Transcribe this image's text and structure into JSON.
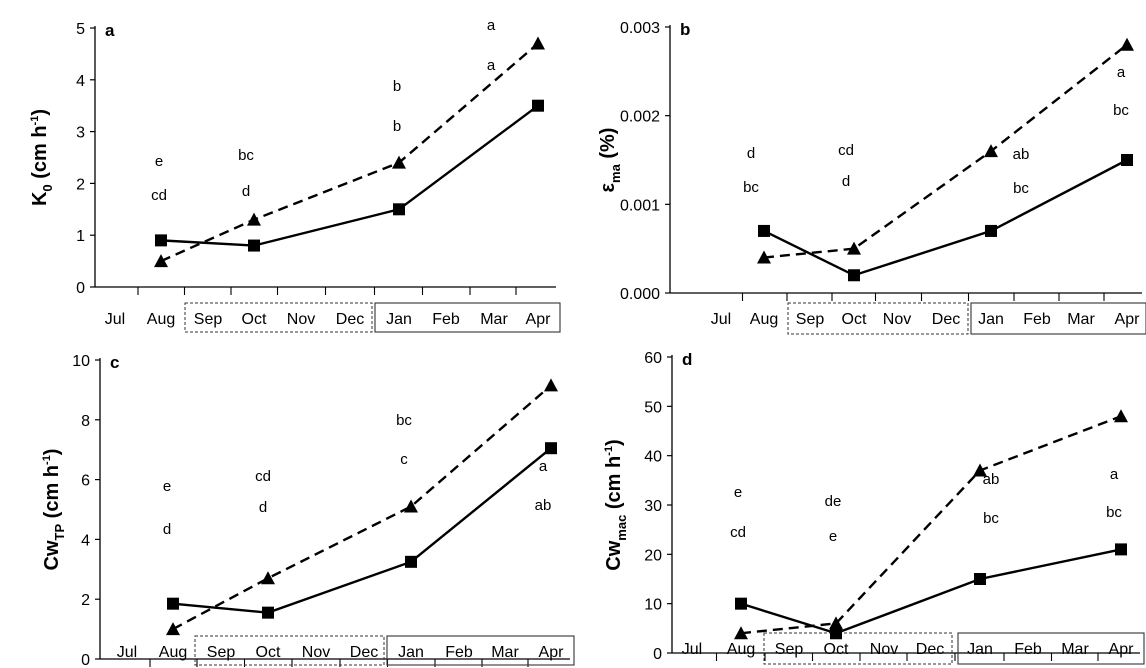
{
  "chart_data": [
    {
      "panel": "a",
      "type": "line",
      "categories": [
        "Jul",
        "Aug",
        "Sep",
        "Oct",
        "Nov",
        "Dec",
        "Jan",
        "Feb",
        "Mar",
        "Apr"
      ],
      "ylim": [
        0,
        5
      ],
      "yticks": [
        "0",
        "1",
        "2",
        "3",
        "4",
        "5"
      ],
      "ylabel": {
        "main": "K",
        "sub": "0",
        "unit_prefix": " (cm h",
        "unit_sup": "-1",
        "unit_suffix": ")"
      },
      "series": [
        {
          "style": "solid",
          "marker": "square",
          "points": [
            [
              "Aug",
              0.9
            ],
            [
              "Oct",
              0.8
            ],
            [
              "Jan",
              1.5
            ],
            [
              "Apr",
              3.5
            ]
          ]
        },
        {
          "style": "dashed",
          "marker": "triangle",
          "points": [
            [
              "Aug",
              0.5
            ],
            [
              "Oct",
              1.3
            ],
            [
              "Jan",
              2.4
            ],
            [
              "Apr",
              4.7
            ]
          ]
        }
      ],
      "letters": [
        {
          "month": "Aug",
          "upper": "e",
          "lower": "cd"
        },
        {
          "month": "Oct",
          "upper": "bc",
          "lower": "d"
        },
        {
          "month": "Jan",
          "upper": "b",
          "lower": "b"
        },
        {
          "month": "Apr",
          "upper": "a",
          "lower": "a"
        }
      ]
    },
    {
      "panel": "b",
      "type": "line",
      "categories": [
        "Jul",
        "Aug",
        "Sep",
        "Oct",
        "Nov",
        "Dec",
        "Jan",
        "Feb",
        "Mar",
        "Apr"
      ],
      "ylim": [
        0,
        0.003
      ],
      "yticks": [
        "0.000",
        "0.001",
        "0.002",
        "0.003"
      ],
      "ylabel": {
        "main": "ε",
        "sub": "ma",
        "unit_prefix": " (%)",
        "unit_sup": "",
        "unit_suffix": ""
      },
      "series": [
        {
          "style": "solid",
          "marker": "square",
          "points": [
            [
              "Aug",
              0.0007
            ],
            [
              "Oct",
              0.0002
            ],
            [
              "Jan",
              0.0007
            ],
            [
              "Apr",
              0.0015
            ]
          ]
        },
        {
          "style": "dashed",
          "marker": "triangle",
          "points": [
            [
              "Aug",
              0.0004
            ],
            [
              "Oct",
              0.0005
            ],
            [
              "Jan",
              0.0016
            ],
            [
              "Apr",
              0.0028
            ]
          ]
        }
      ],
      "letters": [
        {
          "month": "Aug",
          "upper": "d",
          "lower": "bc"
        },
        {
          "month": "Oct",
          "upper": "cd",
          "lower": "d"
        },
        {
          "month": "Jan",
          "upper": "ab",
          "lower": "bc"
        },
        {
          "month": "Apr",
          "upper": "a",
          "lower": "bc"
        }
      ]
    },
    {
      "panel": "c",
      "type": "line",
      "categories": [
        "Jul",
        "Aug",
        "Sep",
        "Oct",
        "Nov",
        "Dec",
        "Jan",
        "Feb",
        "Mar",
        "Apr"
      ],
      "ylim": [
        0,
        10
      ],
      "yticks": [
        "0",
        "2",
        "4",
        "6",
        "8",
        "10"
      ],
      "ylabel": {
        "main": "Cw",
        "sub": "TP",
        "unit_prefix": " (cm h",
        "unit_sup": "-1",
        "unit_suffix": ")"
      },
      "series": [
        {
          "style": "solid",
          "marker": "square",
          "points": [
            [
              "Aug",
              1.85
            ],
            [
              "Oct",
              1.55
            ],
            [
              "Jan",
              3.25
            ],
            [
              "Apr",
              7.05
            ]
          ]
        },
        {
          "style": "dashed",
          "marker": "triangle",
          "points": [
            [
              "Aug",
              1.0
            ],
            [
              "Oct",
              2.7
            ],
            [
              "Jan",
              5.1
            ],
            [
              "Apr",
              9.15
            ]
          ]
        }
      ],
      "letters": [
        {
          "month": "Aug",
          "upper": "e",
          "lower": "d"
        },
        {
          "month": "Oct",
          "upper": "cd",
          "lower": "d"
        },
        {
          "month": "Jan",
          "upper": "bc",
          "lower": "c"
        },
        {
          "month": "Apr",
          "upper": "a",
          "lower": "ab"
        }
      ]
    },
    {
      "panel": "d",
      "type": "line",
      "categories": [
        "Jul",
        "Aug",
        "Sep",
        "Oct",
        "Nov",
        "Dec",
        "Jan",
        "Feb",
        "Mar",
        "Apr"
      ],
      "ylim": [
        0,
        60
      ],
      "yticks": [
        "0",
        "10",
        "20",
        "30",
        "40",
        "50",
        "60"
      ],
      "ylabel": {
        "main": "Cw",
        "sub": "mac",
        "unit_prefix": " (cm h",
        "unit_sup": "-1",
        "unit_suffix": ")"
      },
      "series": [
        {
          "style": "solid",
          "marker": "square",
          "points": [
            [
              "Aug",
              10
            ],
            [
              "Oct",
              4
            ],
            [
              "Jan",
              15
            ],
            [
              "Apr",
              21
            ]
          ]
        },
        {
          "style": "dashed",
          "marker": "triangle",
          "points": [
            [
              "Aug",
              4
            ],
            [
              "Oct",
              6
            ],
            [
              "Jan",
              37
            ],
            [
              "Apr",
              48
            ]
          ]
        }
      ],
      "letters": [
        {
          "month": "Aug",
          "upper": "e",
          "lower": "cd"
        },
        {
          "month": "Oct",
          "upper": "de",
          "lower": "e"
        },
        {
          "month": "Jan",
          "upper": "ab",
          "lower": "bc"
        },
        {
          "month": "Apr",
          "upper": "a",
          "lower": "bc"
        }
      ]
    }
  ]
}
